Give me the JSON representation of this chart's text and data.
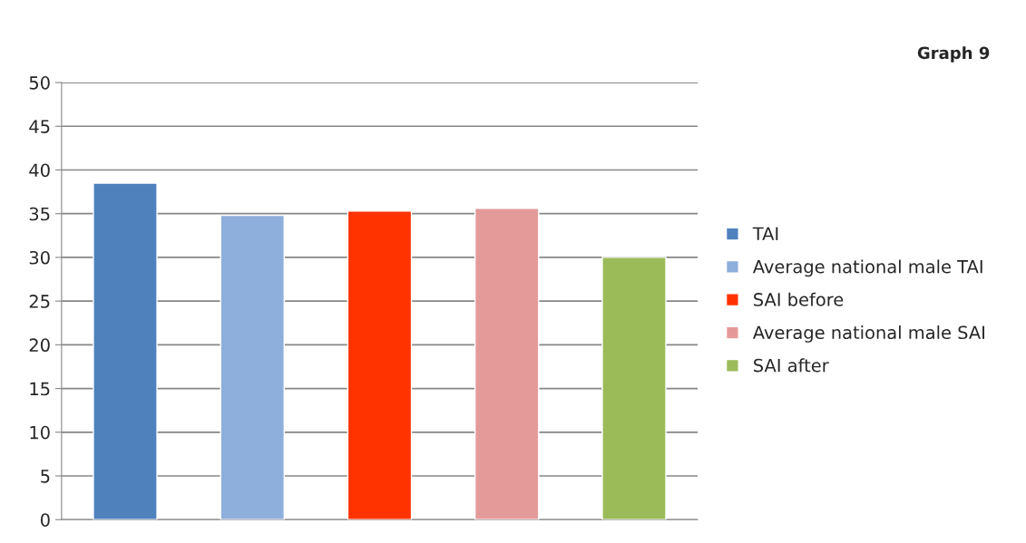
{
  "chart_data": {
    "type": "bar",
    "title": "Graph 9",
    "categories": [
      null
    ],
    "series": [
      {
        "name": "TAI",
        "color": "#4f81bd",
        "values": [
          38.5
        ]
      },
      {
        "name": "Average national male TAI",
        "color": "#8eaedb",
        "values": [
          34.8
        ]
      },
      {
        "name": "SAI before",
        "color": "#ff3300",
        "values": [
          35.3
        ]
      },
      {
        "name": "Average national male SAI",
        "color": "#e59a9a",
        "values": [
          35.6
        ]
      },
      {
        "name": "SAI after",
        "color": "#9bbb59",
        "values": [
          30
        ]
      }
    ],
    "ylim": [
      0,
      50
    ],
    "yticks": [
      0,
      5,
      10,
      15,
      20,
      25,
      30,
      35,
      40,
      45,
      50
    ],
    "grid": "y",
    "legend": "right"
  }
}
